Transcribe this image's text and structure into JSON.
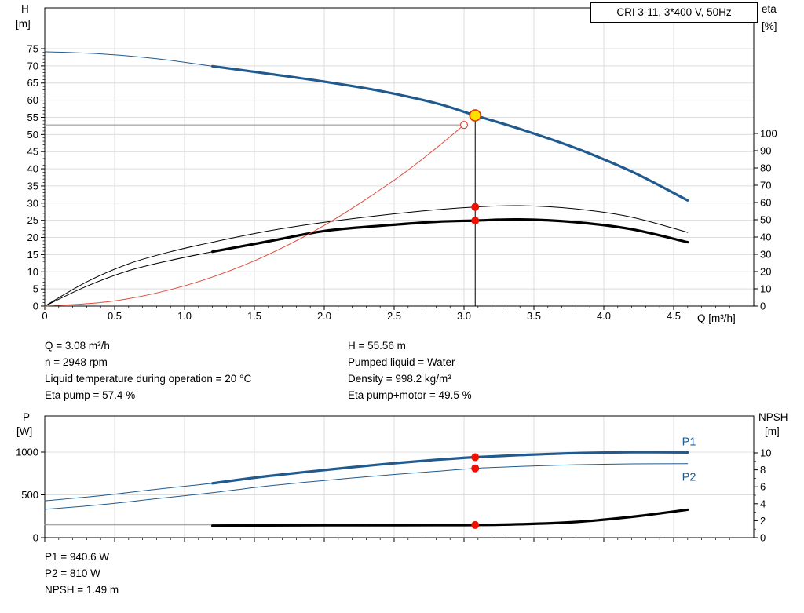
{
  "colors": {
    "blue": "#205a8e",
    "black": "#000000",
    "red": "#e04a3a",
    "dot_red": "#ee1100",
    "duty_fill": "#ffe000",
    "duty_ring": "#e03000",
    "gray": "#8c8c8c",
    "grid": "#dcdcdc",
    "frame": "#000000"
  },
  "info_top": {
    "left": [
      "Q = 3.08 m³/h",
      "n = 2948 rpm",
      "Liquid temperature during operation = 20 °C",
      "Eta pump = 57.4 %"
    ],
    "right": [
      "H = 55.56 m",
      "Pumped liquid = Water",
      "Density = 998.2 kg/m³",
      "Eta pump+motor = 49.5 %"
    ]
  },
  "info_bottom": [
    "P1 = 940.6 W",
    "P2 = 810 W",
    "NPSH = 1.49 m"
  ],
  "chart_data": [
    {
      "type": "line",
      "title": "CRI 3-11, 3*400 V, 50Hz",
      "xlabel": "Q [m³/h]",
      "ylabel_left": [
        "H",
        "[m]"
      ],
      "ylabel_right": [
        "eta",
        "[%]"
      ],
      "xlim": [
        0,
        5.07
      ],
      "x_ticks": [
        0,
        0.5,
        1,
        1.5,
        2,
        2.5,
        3,
        3.5,
        4,
        4.5
      ],
      "x_tick_labels": [
        "0",
        "0.5",
        "1.0",
        "1.5",
        "2.0",
        "2.5",
        "3.0",
        "3.5",
        "4.0",
        "4.5"
      ],
      "left_ticks": [
        0,
        5,
        10,
        15,
        20,
        25,
        30,
        35,
        40,
        45,
        50,
        55,
        60,
        65,
        70,
        75
      ],
      "left_lim": [
        0,
        86.9
      ],
      "right_ticks": [
        0,
        10,
        20,
        30,
        40,
        50,
        60,
        70,
        80,
        90,
        100
      ],
      "right_lim": [
        0,
        100
      ],
      "duty_point": {
        "q": 3.08,
        "h": 55.56
      },
      "series": [
        {
          "name": "head-curve-lead",
          "axis": "left",
          "color": "blue",
          "width": 1,
          "x": [
            0,
            0.4,
            0.8,
            1.2
          ],
          "y": [
            74.1,
            73.5,
            72.1,
            69.9
          ]
        },
        {
          "name": "head-curve",
          "axis": "left",
          "color": "blue",
          "width": 3.2,
          "x": [
            1.2,
            1.6,
            2.0,
            2.4,
            2.8,
            3.08,
            3.4,
            3.8,
            4.2,
            4.6
          ],
          "y": [
            69.9,
            67.7,
            65.4,
            62.7,
            59.1,
            55.56,
            51.6,
            46.0,
            39.2,
            30.8
          ]
        },
        {
          "name": "eta-pump-curve",
          "axis": "right",
          "color": "black",
          "width": 1,
          "x": [
            0,
            0.3,
            0.6,
            0.9,
            1.2,
            1.6,
            2.0,
            2.4,
            2.8,
            3.08,
            3.4,
            3.8,
            4.2,
            4.6
          ],
          "y": [
            0,
            14,
            24.5,
            31.5,
            37,
            43.5,
            48.5,
            52.5,
            55.8,
            57.4,
            58.2,
            56.3,
            51.5,
            42.7
          ]
        },
        {
          "name": "eta-pump-motor-lead",
          "axis": "right",
          "color": "black",
          "width": 1,
          "x": [
            0,
            0.3,
            0.6,
            0.9,
            1.2
          ],
          "y": [
            0,
            11.5,
            20.5,
            26.5,
            31.5
          ]
        },
        {
          "name": "eta-pump-motor-curve",
          "axis": "right",
          "color": "black",
          "width": 3.2,
          "x": [
            1.2,
            1.6,
            2.0,
            2.4,
            2.8,
            3.08,
            3.4,
            3.8,
            4.2,
            4.6
          ],
          "y": [
            31.5,
            37.5,
            43.5,
            46.5,
            48.8,
            49.5,
            50.2,
            48.6,
            44.5,
            37
          ]
        },
        {
          "name": "system-curve",
          "axis": "left",
          "color": "red",
          "width": 1,
          "x": [
            0,
            0.5,
            1.0,
            1.5,
            2.0,
            2.5,
            2.8,
            3.0
          ],
          "y": [
            0,
            1.5,
            5.9,
            13.2,
            23.5,
            36.7,
            46.0,
            52.8
          ]
        }
      ],
      "guides": [
        {
          "name": "duty-flow-guide",
          "dir": "v",
          "at": 3.08,
          "from": 0,
          "to": 55.56,
          "axis": "left",
          "color": "black"
        },
        {
          "name": "duty-head-guide",
          "dir": "h",
          "at": 52.8,
          "from": 0,
          "to": 3.0,
          "axis": "left",
          "color": "gray"
        }
      ],
      "markers": [
        {
          "name": "duty-point-marker",
          "q": 3.08,
          "v": 55.56,
          "axis": "left",
          "style": "duty"
        },
        {
          "name": "system-intersect-marker",
          "q": 3.0,
          "v": 52.8,
          "axis": "left",
          "style": "hollow"
        },
        {
          "name": "eta-pump-marker",
          "q": 3.08,
          "v": 57.4,
          "axis": "right",
          "style": "dot"
        },
        {
          "name": "eta-pump-motor-marker",
          "q": 3.08,
          "v": 49.5,
          "axis": "right",
          "style": "dot"
        }
      ],
      "labels": []
    },
    {
      "type": "line",
      "title": "",
      "xlabel": "",
      "ylabel_left": [
        "P",
        "[W]"
      ],
      "ylabel_right": [
        "NPSH",
        "[m]"
      ],
      "xlim": [
        0,
        5.07
      ],
      "x_ticks": [
        0,
        0.5,
        1,
        1.5,
        2,
        2.5,
        3,
        3.5,
        4,
        4.5
      ],
      "x_tick_labels": [],
      "left_ticks": [
        0,
        500,
        1000
      ],
      "left_lim": [
        0,
        1422
      ],
      "right_ticks": [
        0,
        2,
        4,
        6,
        8,
        10
      ],
      "right_minor_step": 1,
      "right_lim": [
        0,
        14.35
      ],
      "series": [
        {
          "name": "p1-curve-lead",
          "axis": "left",
          "color": "blue",
          "width": 1,
          "x": [
            0,
            0.4,
            0.8,
            1.2
          ],
          "y": [
            430,
            490,
            565,
            635
          ]
        },
        {
          "name": "p1-curve",
          "axis": "left",
          "color": "blue",
          "width": 3.2,
          "x": [
            1.2,
            1.6,
            2.0,
            2.4,
            2.8,
            3.08,
            3.4,
            3.8,
            4.2,
            4.6
          ],
          "y": [
            635,
            720,
            790,
            855,
            910,
            940.6,
            965,
            988,
            998,
            996
          ]
        },
        {
          "name": "p2-curve",
          "axis": "left",
          "color": "blue",
          "width": 1,
          "x": [
            0,
            0.4,
            0.8,
            1.2,
            1.6,
            2.0,
            2.4,
            2.8,
            3.08,
            3.4,
            3.8,
            4.2,
            4.6
          ],
          "y": [
            330,
            385,
            455,
            525,
            605,
            668,
            725,
            775,
            810,
            832,
            852,
            862,
            865
          ]
        },
        {
          "name": "npsh-curve-lead",
          "axis": "right",
          "color": "gray",
          "width": 1,
          "x": [
            0,
            1.2
          ],
          "y": [
            1.5,
            1.5
          ]
        },
        {
          "name": "npsh-curve",
          "axis": "right",
          "color": "black",
          "width": 3.2,
          "x": [
            1.2,
            1.6,
            2.0,
            2.4,
            2.8,
            3.08,
            3.4,
            3.8,
            4.2,
            4.6
          ],
          "y": [
            1.42,
            1.44,
            1.46,
            1.47,
            1.48,
            1.49,
            1.58,
            1.85,
            2.45,
            3.3
          ]
        }
      ],
      "guides": [],
      "markers": [
        {
          "name": "p1-marker",
          "q": 3.08,
          "v": 940.6,
          "axis": "left",
          "style": "dot"
        },
        {
          "name": "p2-marker",
          "q": 3.08,
          "v": 810,
          "axis": "left",
          "style": "dot"
        },
        {
          "name": "npsh-marker",
          "q": 3.08,
          "v": 1.49,
          "axis": "right",
          "style": "dot"
        }
      ],
      "labels": [
        {
          "name": "p1-label",
          "text": "P1",
          "q": 4.56,
          "v": 1080,
          "axis": "left",
          "color": "blue"
        },
        {
          "name": "p2-label",
          "text": "P2",
          "q": 4.56,
          "v": 665,
          "axis": "left",
          "color": "blue"
        }
      ]
    }
  ]
}
